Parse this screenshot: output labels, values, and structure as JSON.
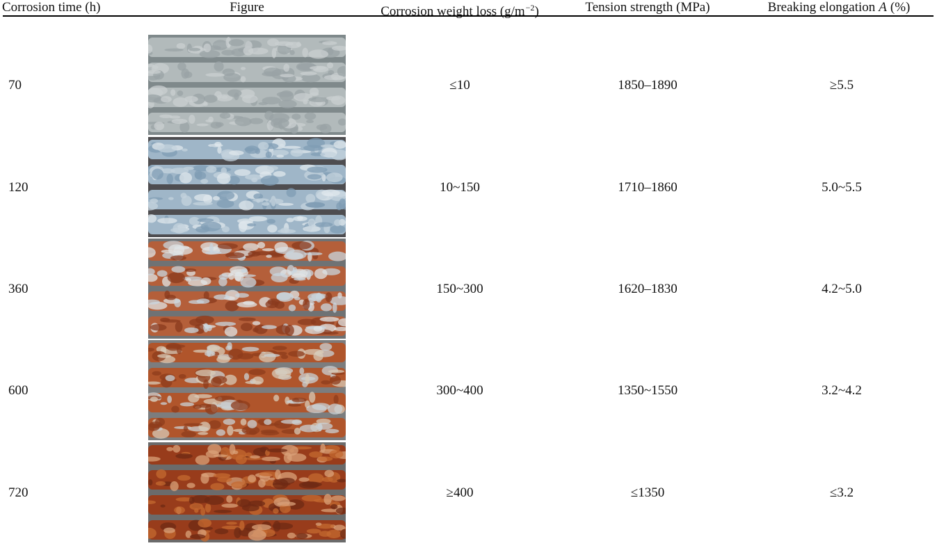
{
  "table": {
    "header": [
      "Corrosion time (h)",
      "Figure",
      [
        "Corrosion weight loss (g/m",
        "−2",
        ")"
      ],
      "Tension strength (MPa)",
      [
        "Breaking elongation",
        "A",
        "(%)"
      ]
    ],
    "rows": [
      [
        "70",
        "≤10",
        "1850–1890",
        "≥5.5"
      ],
      [
        "120",
        "10~150",
        "1710–1860",
        "5.0~5.5"
      ],
      [
        "360",
        "150~300",
        "1620–1830",
        "4.2~5.0"
      ],
      [
        "600",
        "300~400",
        "1350~1550",
        "3.2~4.2"
      ],
      [
        "720",
        "≥400",
        "≤1350",
        "≤3.2"
      ]
    ]
  }
}
